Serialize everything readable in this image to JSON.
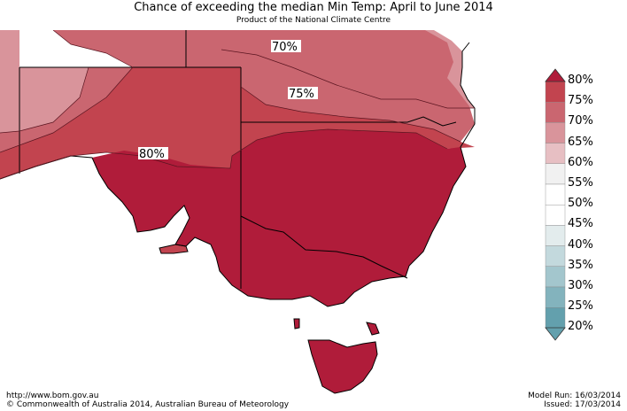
{
  "header": {
    "title": "Chance of exceeding the median Min Temp: April to June 2014",
    "subtitle": "Product of the National Climate Centre"
  },
  "map": {
    "contour_labels": [
      "70%",
      "75%",
      "80%"
    ]
  },
  "legend": {
    "labels": [
      "80%",
      "75%",
      "70%",
      "65%",
      "60%",
      "55%",
      "50%",
      "45%",
      "40%",
      "35%",
      "30%",
      "25%",
      "20%"
    ],
    "colors": {
      "80": "#b01c3a",
      "75": "#c2444f",
      "70": "#ca6670",
      "65": "#d9949b",
      "60": "#e7bfc3",
      "55": "#f1f1f1",
      "50": "#ffffff",
      "45": "#ffffff",
      "40": "#e3eced",
      "35": "#c3d9dd",
      "30": "#a3c6cd",
      "25": "#83b3bd",
      "20": "#63a0ad"
    }
  },
  "footer": {
    "url": "http://www.bom.gov.au",
    "copyright": "©  Commonwealth of Australia 2014, Australian Bureau of Meteorology",
    "model_run": "Model Run: 16/03/2014",
    "issued": "Issued: 17/03/2014"
  }
}
